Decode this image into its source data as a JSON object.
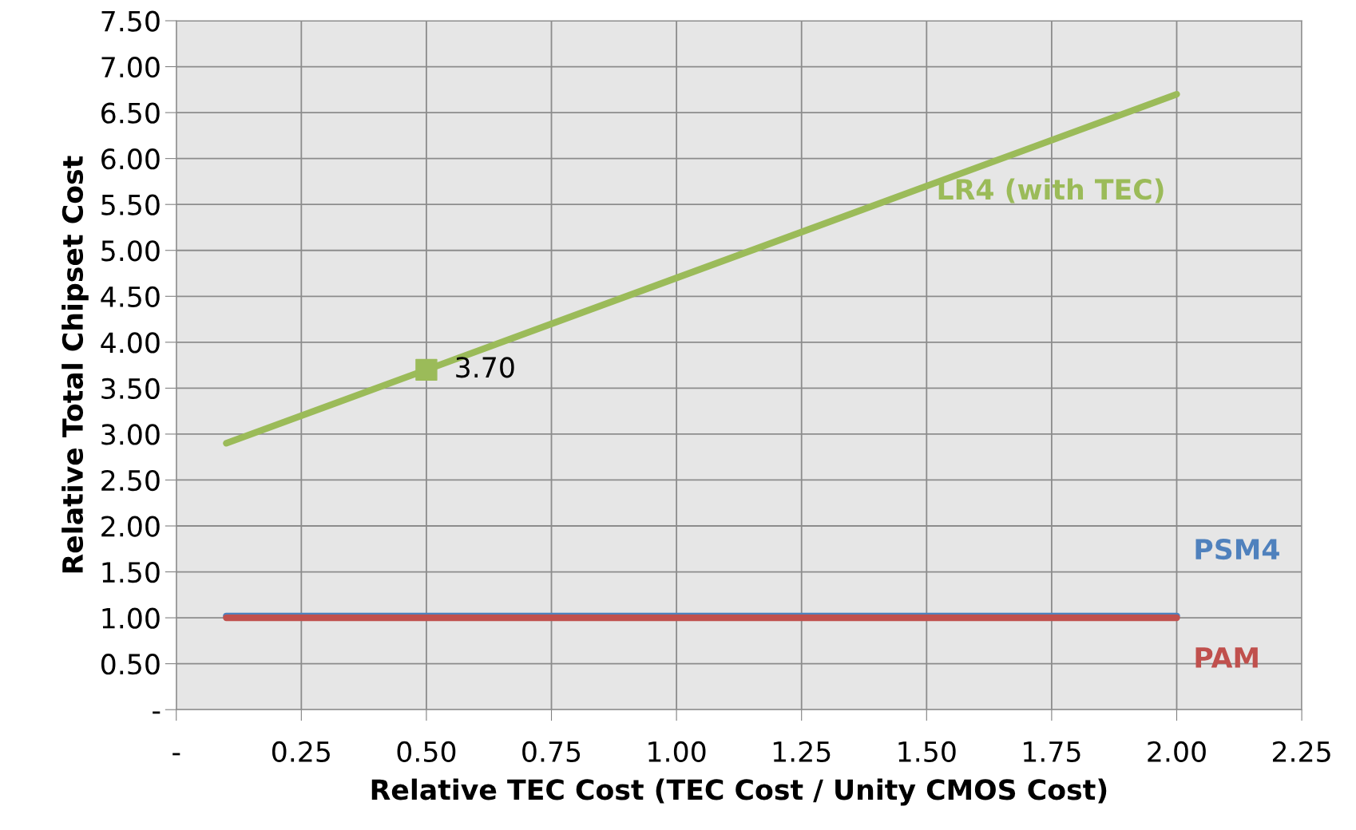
{
  "chart_data": {
    "type": "line",
    "xlabel": "Relative TEC Cost (TEC Cost / Unity CMOS Cost)",
    "ylabel": "Relative Total Chipset Cost",
    "xlim": [
      0,
      2.25
    ],
    "ylim": [
      0,
      7.5
    ],
    "xticks": [
      {
        "value": 0,
        "label": "-"
      },
      {
        "value": 0.25,
        "label": "0.25"
      },
      {
        "value": 0.5,
        "label": "0.50"
      },
      {
        "value": 0.75,
        "label": "0.75"
      },
      {
        "value": 1.0,
        "label": "1.00"
      },
      {
        "value": 1.25,
        "label": "1.25"
      },
      {
        "value": 1.5,
        "label": "1.50"
      },
      {
        "value": 1.75,
        "label": "1.75"
      },
      {
        "value": 2.0,
        "label": "2.00"
      },
      {
        "value": 2.25,
        "label": "2.25"
      }
    ],
    "yticks": [
      {
        "value": 0,
        "label": "-"
      },
      {
        "value": 0.5,
        "label": "0.50"
      },
      {
        "value": 1.0,
        "label": "1.00"
      },
      {
        "value": 1.5,
        "label": "1.50"
      },
      {
        "value": 2.0,
        "label": "2.00"
      },
      {
        "value": 2.5,
        "label": "2.50"
      },
      {
        "value": 3.0,
        "label": "3.00"
      },
      {
        "value": 3.5,
        "label": "3.50"
      },
      {
        "value": 4.0,
        "label": "4.00"
      },
      {
        "value": 4.5,
        "label": "4.50"
      },
      {
        "value": 5.0,
        "label": "5.00"
      },
      {
        "value": 5.5,
        "label": "5.50"
      },
      {
        "value": 6.0,
        "label": "6.00"
      },
      {
        "value": 6.5,
        "label": "6.50"
      },
      {
        "value": 7.0,
        "label": "7.00"
      },
      {
        "value": 7.5,
        "label": "7.50"
      }
    ],
    "grid": true,
    "marker": "none",
    "line_style": "solid",
    "series": [
      {
        "name": "LR4 (with TEC)",
        "color": "#9bbb59",
        "x": [
          0.1,
          0.5,
          1.0,
          1.5,
          2.0
        ],
        "values": [
          2.9,
          3.7,
          4.7,
          5.7,
          6.7
        ]
      },
      {
        "name": "PSM4",
        "color": "#4f81bd",
        "x": [
          0.1,
          2.0
        ],
        "values": [
          1.02,
          1.02
        ]
      },
      {
        "name": "PAM",
        "color": "#c0504d",
        "x": [
          0.1,
          2.0
        ],
        "values": [
          1.0,
          1.0
        ]
      },
      {
        "type": "scatter",
        "marker": "square",
        "color": "#9bbb59",
        "x": [
          0.5
        ],
        "values": [
          3.7
        ]
      }
    ],
    "annotations": [
      {
        "text": "3.70",
        "x": 0.5,
        "y": 3.7
      }
    ]
  }
}
